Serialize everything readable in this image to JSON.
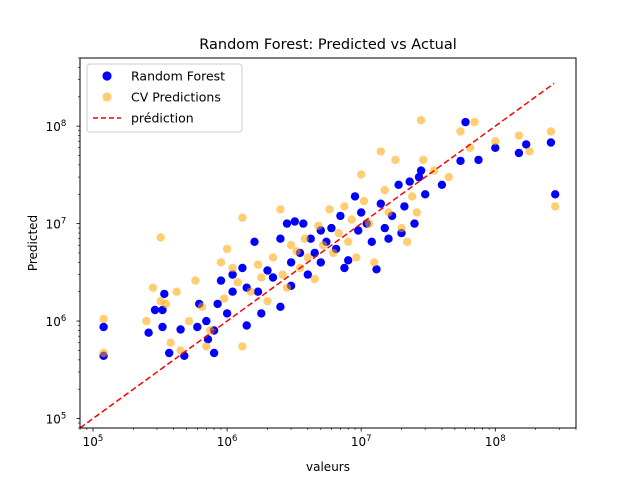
{
  "chart_data": {
    "type": "scatter",
    "title": "Random Forest: Predicted vs Actual",
    "xlabel": "valeurs",
    "ylabel": "Predicted",
    "xscale": "log",
    "yscale": "log",
    "xlim": [
      80000,
      400000000
    ],
    "ylim": [
      80000,
      500000000
    ],
    "xticks": [
      {
        "value": 100000,
        "base": "10",
        "exp": "5"
      },
      {
        "value": 1000000,
        "base": "10",
        "exp": "6"
      },
      {
        "value": 10000000,
        "base": "10",
        "exp": "7"
      },
      {
        "value": 100000000,
        "base": "10",
        "exp": "8"
      }
    ],
    "yticks": [
      {
        "value": 100000,
        "base": "10",
        "exp": "5"
      },
      {
        "value": 1000000,
        "base": "10",
        "exp": "6"
      },
      {
        "value": 10000000,
        "base": "10",
        "exp": "7"
      },
      {
        "value": 100000000,
        "base": "10",
        "exp": "8"
      }
    ],
    "grid": false,
    "legend_position": "upper-left",
    "legend": [
      {
        "label": "Random Forest",
        "marker": "circle",
        "color": "#0000ff"
      },
      {
        "label": "CV Predictions",
        "marker": "circle",
        "color": "#ffa500"
      },
      {
        "label": "prédiction",
        "marker": "dashed-line",
        "color": "#ff0000"
      }
    ],
    "series": [
      {
        "name": "Random Forest",
        "color": "#0000ff",
        "points": [
          [
            120000,
            870000
          ],
          [
            120000,
            440000
          ],
          [
            260000,
            760000
          ],
          [
            290000,
            1300000
          ],
          [
            330000,
            1300000
          ],
          [
            330000,
            870000
          ],
          [
            340000,
            1900000
          ],
          [
            370000,
            470000
          ],
          [
            450000,
            820000
          ],
          [
            480000,
            440000
          ],
          [
            600000,
            870000
          ],
          [
            620000,
            1500000
          ],
          [
            700000,
            1000000
          ],
          [
            720000,
            650000
          ],
          [
            800000,
            800000
          ],
          [
            800000,
            470000
          ],
          [
            850000,
            1500000
          ],
          [
            900000,
            2600000
          ],
          [
            1000000,
            1200000
          ],
          [
            1100000,
            3000000
          ],
          [
            1100000,
            2000000
          ],
          [
            1300000,
            3500000
          ],
          [
            1400000,
            900000
          ],
          [
            1400000,
            2200000
          ],
          [
            1600000,
            6500000
          ],
          [
            1700000,
            2000000
          ],
          [
            1800000,
            1200000
          ],
          [
            2000000,
            3300000
          ],
          [
            2200000,
            2800000
          ],
          [
            2500000,
            7000000
          ],
          [
            2500000,
            1400000
          ],
          [
            2800000,
            10000000
          ],
          [
            3000000,
            4000000
          ],
          [
            3000000,
            2300000
          ],
          [
            3200000,
            10500000
          ],
          [
            3500000,
            5000000
          ],
          [
            3700000,
            10000000
          ],
          [
            4000000,
            3000000
          ],
          [
            4200000,
            7000000
          ],
          [
            4500000,
            5000000
          ],
          [
            5000000,
            4000000
          ],
          [
            5000000,
            8500000
          ],
          [
            5500000,
            6500000
          ],
          [
            6000000,
            9000000
          ],
          [
            6500000,
            5500000
          ],
          [
            7000000,
            12000000
          ],
          [
            7500000,
            3500000
          ],
          [
            8000000,
            4200000
          ],
          [
            9000000,
            19000000
          ],
          [
            9500000,
            8500000
          ],
          [
            10000000,
            13000000
          ],
          [
            11000000,
            10000000
          ],
          [
            12000000,
            6500000
          ],
          [
            13000000,
            3400000
          ],
          [
            14000000,
            16000000
          ],
          [
            15000000,
            9000000
          ],
          [
            16000000,
            7000000
          ],
          [
            17000000,
            12000000
          ],
          [
            19000000,
            25000000
          ],
          [
            20000000,
            8000000
          ],
          [
            21000000,
            15000000
          ],
          [
            23000000,
            27000000
          ],
          [
            25000000,
            10000000
          ],
          [
            27000000,
            30000000
          ],
          [
            28000000,
            35000000
          ],
          [
            30000000,
            20000000
          ],
          [
            40000000,
            25000000
          ],
          [
            55000000,
            44000000
          ],
          [
            60000000,
            110000000
          ],
          [
            75000000,
            45000000
          ],
          [
            100000000,
            60000000
          ],
          [
            150000000,
            53000000
          ],
          [
            170000000,
            65000000
          ],
          [
            260000000,
            68000000
          ],
          [
            280000000,
            20000000
          ]
        ]
      },
      {
        "name": "CV Predictions",
        "color": "#ffa500",
        "points": [
          [
            120000,
            1050000
          ],
          [
            120000,
            470000
          ],
          [
            250000,
            1000000
          ],
          [
            280000,
            2200000
          ],
          [
            320000,
            1600000
          ],
          [
            320000,
            7200000
          ],
          [
            350000,
            1500000
          ],
          [
            380000,
            600000
          ],
          [
            420000,
            2000000
          ],
          [
            450000,
            500000
          ],
          [
            520000,
            1000000
          ],
          [
            580000,
            2600000
          ],
          [
            650000,
            1400000
          ],
          [
            700000,
            550000
          ],
          [
            750000,
            800000
          ],
          [
            900000,
            4000000
          ],
          [
            950000,
            1700000
          ],
          [
            1000000,
            5500000
          ],
          [
            1100000,
            3500000
          ],
          [
            1200000,
            2500000
          ],
          [
            1300000,
            11500000
          ],
          [
            1300000,
            550000
          ],
          [
            1500000,
            2000000
          ],
          [
            1700000,
            3800000
          ],
          [
            1800000,
            2800000
          ],
          [
            2000000,
            1600000
          ],
          [
            2200000,
            4500000
          ],
          [
            2500000,
            14000000
          ],
          [
            2600000,
            3000000
          ],
          [
            2800000,
            2200000
          ],
          [
            3000000,
            6000000
          ],
          [
            3300000,
            5200000
          ],
          [
            3500000,
            3500000
          ],
          [
            3800000,
            7000000
          ],
          [
            4000000,
            4500000
          ],
          [
            4500000,
            2700000
          ],
          [
            4800000,
            9500000
          ],
          [
            5200000,
            6000000
          ],
          [
            5800000,
            14000000
          ],
          [
            6200000,
            5000000
          ],
          [
            6800000,
            8000000
          ],
          [
            7500000,
            15000000
          ],
          [
            8000000,
            6500000
          ],
          [
            8500000,
            11000000
          ],
          [
            9200000,
            4500000
          ],
          [
            10000000,
            32000000
          ],
          [
            10500000,
            17000000
          ],
          [
            11500000,
            10000000
          ],
          [
            12500000,
            4000000
          ],
          [
            14000000,
            55000000
          ],
          [
            15000000,
            22000000
          ],
          [
            16000000,
            13000000
          ],
          [
            18000000,
            45000000
          ],
          [
            20000000,
            9000000
          ],
          [
            22000000,
            6500000
          ],
          [
            24000000,
            19000000
          ],
          [
            26000000,
            13000000
          ],
          [
            28000000,
            115000000
          ],
          [
            29000000,
            45000000
          ],
          [
            35000000,
            35000000
          ],
          [
            45000000,
            30000000
          ],
          [
            55000000,
            88000000
          ],
          [
            65000000,
            60000000
          ],
          [
            70000000,
            110000000
          ],
          [
            100000000,
            70000000
          ],
          [
            150000000,
            80000000
          ],
          [
            180000000,
            55000000
          ],
          [
            260000000,
            88000000
          ],
          [
            280000000,
            15000000
          ]
        ]
      },
      {
        "name": "prédiction",
        "color": "#ff0000",
        "line": [
          [
            80000,
            80000
          ],
          [
            275000000,
            275000000
          ]
        ]
      }
    ]
  }
}
